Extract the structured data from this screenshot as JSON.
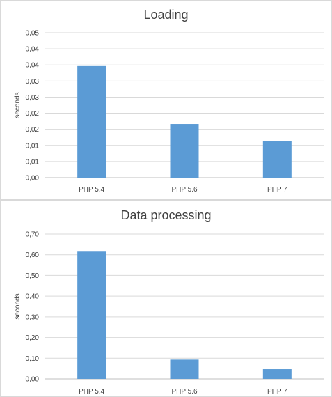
{
  "chart_data": [
    {
      "type": "bar",
      "title": "Loading",
      "xlabel": "",
      "ylabel": "seconds",
      "categories": [
        "PHP 5.4",
        "PHP 5.6",
        "PHP 7"
      ],
      "values": [
        0.0385,
        0.0185,
        0.0125
      ],
      "ylim": [
        0,
        0.05
      ],
      "yticks": [
        "0,00",
        "0,01",
        "0,01",
        "0,02",
        "0,02",
        "0,03",
        "0,03",
        "0,04",
        "0,04",
        "0,05"
      ],
      "grid": true,
      "legend": "none",
      "bar_color": "#5b9bd5"
    },
    {
      "type": "bar",
      "title": "Data processing",
      "xlabel": "",
      "ylabel": "seconds",
      "categories": [
        "PHP 5.4",
        "PHP 5.6",
        "PHP 7"
      ],
      "values": [
        0.615,
        0.093,
        0.047
      ],
      "ylim": [
        0,
        0.7
      ],
      "yticks": [
        "0,00",
        "0,10",
        "0,20",
        "0,30",
        "0,40",
        "0,50",
        "0,60",
        "0,70"
      ],
      "grid": true,
      "legend": "none",
      "bar_color": "#5b9bd5"
    }
  ]
}
